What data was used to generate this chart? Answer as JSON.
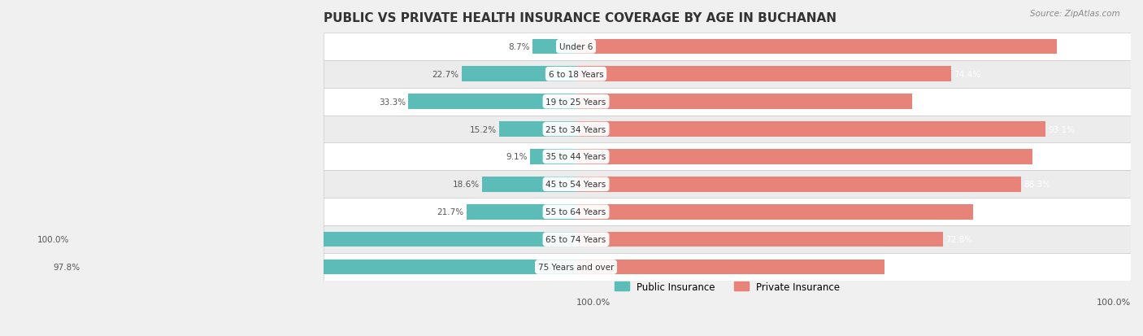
{
  "title": "PUBLIC VS PRIVATE HEALTH INSURANCE COVERAGE BY AGE IN BUCHANAN",
  "source": "Source: ZipAtlas.com",
  "categories": [
    "Under 6",
    "6 to 18 Years",
    "19 to 25 Years",
    "25 to 34 Years",
    "35 to 44 Years",
    "45 to 54 Years",
    "55 to 64 Years",
    "65 to 74 Years",
    "75 Years and over"
  ],
  "public_values": [
    8.7,
    22.7,
    33.3,
    15.2,
    9.1,
    18.6,
    21.7,
    100.0,
    97.8
  ],
  "private_values": [
    95.3,
    74.4,
    66.7,
    93.1,
    90.5,
    88.3,
    78.8,
    72.8,
    61.2
  ],
  "public_color": "#5bbcb8",
  "private_color": "#e8837a",
  "bg_color": "#f0f0f0",
  "row_bg_light": "#f7f7f7",
  "row_bg_dark": "#eeeeee",
  "bar_height": 0.55,
  "xlim_left": -50,
  "xlim_right": 110,
  "legend_public": "Public Insurance",
  "legend_private": "Private Insurance"
}
